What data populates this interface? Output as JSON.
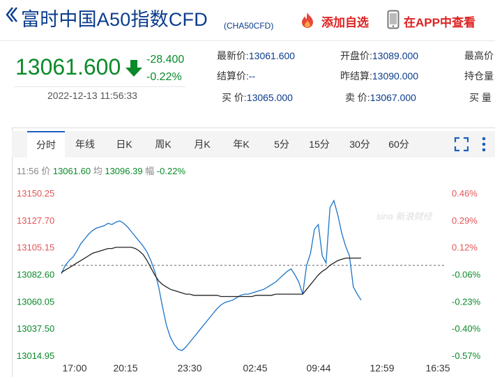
{
  "header": {
    "title": "富时中国A50指数CFD",
    "code": "(CHA50CFD)",
    "add_favorite": "添加自选",
    "view_in_app": "在APP中查看"
  },
  "quote": {
    "price": "13061.600",
    "change": "-28.400",
    "change_pct": "-0.22%",
    "timestamp": "2022-12-13 11:56:33",
    "fields": [
      {
        "label": "最新价:",
        "value": "13061.600"
      },
      {
        "label": "结算价:",
        "value": "--"
      },
      {
        "label": "买  价:",
        "value": "13065.000"
      },
      {
        "label": "开盘价:",
        "value": "13089.000"
      },
      {
        "label": "昨结算:",
        "value": "13090.000"
      },
      {
        "label": "卖  价:",
        "value": "13067.000"
      },
      {
        "label": "最高价",
        "value": ""
      },
      {
        "label": "持仓量",
        "value": ""
      },
      {
        "label": "买  量",
        "value": ""
      }
    ]
  },
  "tabs": [
    "分时",
    "年线",
    "日K",
    "周K",
    "月K",
    "年K",
    "5分",
    "15分",
    "30分",
    "60分"
  ],
  "active_tab": "分时",
  "infoline": {
    "time": "11:56",
    "price_label": "价",
    "price": "13061.60",
    "avg_label": "均",
    "avg": "13096.39",
    "pct_label": "幅",
    "pct": "-0.22%"
  },
  "watermark": "sina 新浪财经",
  "colors": {
    "up": "#e05656",
    "down": "#0a8a2a",
    "price_line": "#1a73c8",
    "avg_line": "#222222",
    "brand": "#0b3c8c"
  },
  "chart_data": {
    "type": "line",
    "title": "",
    "x_ticks": [
      "17:00",
      "20:15",
      "23:30",
      "02:45",
      "09:44",
      "12:59",
      "16:35"
    ],
    "y_ticks_left": [
      "13150.25",
      "13127.70",
      "13105.15",
      "13082.60",
      "13060.05",
      "13037.50",
      "13014.95"
    ],
    "y_ticks_right": [
      "0.46%",
      "0.29%",
      "0.12%",
      "-0.06%",
      "-0.23%",
      "-0.40%",
      "-0.57%"
    ],
    "ylim": [
      13014.95,
      13150.25
    ],
    "reference_close": 13090.0,
    "series": [
      {
        "name": "价",
        "values": [
          13083,
          13090,
          13094,
          13097,
          13102,
          13108,
          13112,
          13116,
          13119,
          13121,
          13122,
          13123,
          13125,
          13124,
          13126,
          13127,
          13125,
          13122,
          13118,
          13114,
          13110,
          13106,
          13101,
          13094,
          13085,
          13072,
          13055,
          13040,
          13030,
          13024,
          13020,
          13019,
          13022,
          13026,
          13030,
          13034,
          13038,
          13042,
          13046,
          13050,
          13054,
          13057,
          13059,
          13060,
          13061,
          13063,
          13065,
          13066,
          13066,
          13067,
          13068,
          13069,
          13070,
          13072,
          13074,
          13076,
          13079,
          13082,
          13085,
          13087,
          13082,
          13076,
          13066,
          13090,
          13100,
          13120,
          13124,
          13098,
          13092,
          13138,
          13144,
          13132,
          13117,
          13106,
          13098,
          13072,
          13066,
          13061
        ]
      },
      {
        "name": "均",
        "values": [
          13084,
          13086,
          13088,
          13090,
          13092,
          13094,
          13096,
          13098,
          13100,
          13101,
          13102,
          13103,
          13104,
          13104,
          13105,
          13105,
          13105,
          13105,
          13105,
          13104,
          13102,
          13099,
          13094,
          13088,
          13082,
          13077,
          13074,
          13072,
          13070,
          13069,
          13068,
          13067,
          13066,
          13066,
          13065,
          13065,
          13065,
          13065,
          13065,
          13065,
          13065,
          13064,
          13064,
          13064,
          13064,
          13064,
          13064,
          13064,
          13064,
          13064,
          13065,
          13065,
          13065,
          13065,
          13065,
          13066,
          13066,
          13066,
          13066,
          13066,
          13066,
          13066,
          13066,
          13070,
          13074,
          13078,
          13082,
          13085,
          13087,
          13090,
          13092,
          13094,
          13095,
          13096,
          13096,
          13096,
          13096,
          13096
        ]
      }
    ]
  }
}
